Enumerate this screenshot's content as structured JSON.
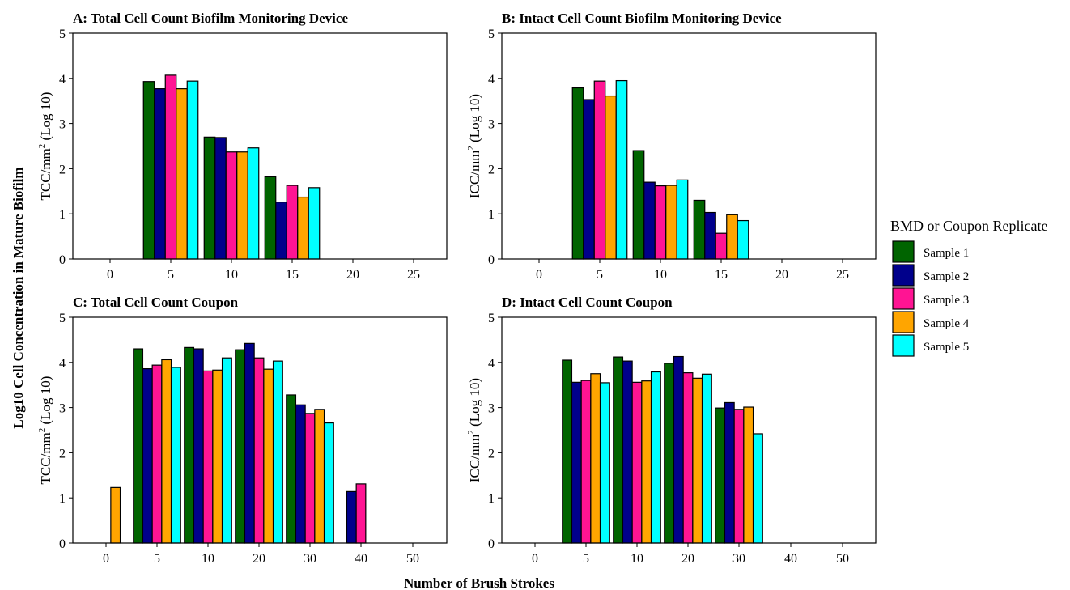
{
  "figure": {
    "ylabel_prefix": "Log10  Cell Concentration in Mature Biofilm",
    "xlabel": "Number of Brush Strokes",
    "legend_title": "BMD or Coupon Replicate",
    "legend_items": [
      {
        "label": "Sample 1",
        "color": "#006400"
      },
      {
        "label": "Sample 2",
        "color": "#00008B"
      },
      {
        "label": "Sample 3",
        "color": "#FF1493"
      },
      {
        "label": "Sample 4",
        "color": "#FFA500"
      },
      {
        "label": "Sample 5",
        "color": "#00FFFF"
      }
    ]
  },
  "chart_data": [
    {
      "type": "bar",
      "title": "A: Total Cell Count Biofilm Monitoring Device",
      "ylabel_main": "TCC/mm",
      "ylabel_sup": "2",
      "ylabel_tail": " (Log 10)",
      "ylim": [
        0,
        5
      ],
      "yticks": [
        "0",
        "1",
        "2",
        "3",
        "4",
        "5"
      ],
      "categories": [
        "0",
        "5",
        "10",
        "15",
        "20",
        "25"
      ],
      "series": [
        {
          "name": "Sample 1",
          "values": [
            null,
            3.93,
            2.7,
            1.82,
            null,
            null
          ]
        },
        {
          "name": "Sample 2",
          "values": [
            null,
            3.77,
            2.69,
            1.26,
            null,
            null
          ]
        },
        {
          "name": "Sample 3",
          "values": [
            null,
            4.07,
            2.37,
            1.63,
            null,
            null
          ]
        },
        {
          "name": "Sample 4",
          "values": [
            null,
            3.77,
            2.37,
            1.37,
            null,
            null
          ]
        },
        {
          "name": "Sample 5",
          "values": [
            null,
            3.94,
            2.46,
            1.58,
            null,
            null
          ]
        }
      ],
      "grid": false,
      "legend": "right"
    },
    {
      "type": "bar",
      "title": "B: Intact Cell Count Biofilm Monitoring Device",
      "ylabel_main": "ICC/mm",
      "ylabel_sup": "2",
      "ylabel_tail": " (Log 10)",
      "ylim": [
        0,
        5
      ],
      "yticks": [
        "0",
        "1",
        "2",
        "3",
        "4",
        "5"
      ],
      "categories": [
        "0",
        "5",
        "10",
        "15",
        "20",
        "25"
      ],
      "series": [
        {
          "name": "Sample 1",
          "values": [
            null,
            3.79,
            2.4,
            1.3,
            null,
            null
          ]
        },
        {
          "name": "Sample 2",
          "values": [
            null,
            3.53,
            1.7,
            1.03,
            null,
            null
          ]
        },
        {
          "name": "Sample 3",
          "values": [
            null,
            3.94,
            1.62,
            0.57,
            null,
            null
          ]
        },
        {
          "name": "Sample 4",
          "values": [
            null,
            3.61,
            1.63,
            0.98,
            null,
            null
          ]
        },
        {
          "name": "Sample 5",
          "values": [
            null,
            3.95,
            1.75,
            0.85,
            null,
            null
          ]
        }
      ],
      "grid": false,
      "legend": "right"
    },
    {
      "type": "bar",
      "title": "C: Total Cell Count Coupon",
      "ylabel_main": "TCC/mm",
      "ylabel_sup": "2",
      "ylabel_tail": " (Log 10)",
      "ylim": [
        0,
        5
      ],
      "yticks": [
        "0",
        "1",
        "2",
        "3",
        "4",
        "5"
      ],
      "categories": [
        "0",
        "5",
        "10",
        "20",
        "30",
        "40",
        "50"
      ],
      "series": [
        {
          "name": "Sample 1",
          "values": [
            null,
            4.3,
            4.33,
            4.28,
            3.28,
            null,
            null
          ]
        },
        {
          "name": "Sample 2",
          "values": [
            null,
            3.86,
            4.3,
            4.42,
            3.06,
            1.14,
            null
          ]
        },
        {
          "name": "Sample 3",
          "values": [
            null,
            3.94,
            3.81,
            4.1,
            2.87,
            1.31,
            null
          ]
        },
        {
          "name": "Sample 4",
          "values": [
            1.23,
            4.06,
            3.83,
            3.85,
            2.96,
            null,
            null
          ]
        },
        {
          "name": "Sample 5",
          "values": [
            null,
            3.89,
            4.1,
            4.03,
            2.66,
            null,
            null
          ]
        }
      ],
      "grid": false,
      "legend": "right"
    },
    {
      "type": "bar",
      "title": "D: Intact Cell Count Coupon",
      "ylabel_main": "ICC/mm",
      "ylabel_sup": "2",
      "ylabel_tail": " (Log 10)",
      "ylim": [
        0,
        5
      ],
      "yticks": [
        "0",
        "1",
        "2",
        "3",
        "4",
        "5"
      ],
      "categories": [
        "0",
        "5",
        "10",
        "20",
        "30",
        "40",
        "50"
      ],
      "series": [
        {
          "name": "Sample 1",
          "values": [
            null,
            4.05,
            4.12,
            3.98,
            2.99,
            null,
            null
          ]
        },
        {
          "name": "Sample 2",
          "values": [
            null,
            3.56,
            4.03,
            4.13,
            3.11,
            null,
            null
          ]
        },
        {
          "name": "Sample 3",
          "values": [
            null,
            3.6,
            3.56,
            3.77,
            2.96,
            null,
            null
          ]
        },
        {
          "name": "Sample 4",
          "values": [
            null,
            3.75,
            3.59,
            3.65,
            3.01,
            null,
            null
          ]
        },
        {
          "name": "Sample 5",
          "values": [
            null,
            3.55,
            3.79,
            3.74,
            2.42,
            null,
            null
          ]
        }
      ],
      "grid": false,
      "legend": "right"
    }
  ]
}
